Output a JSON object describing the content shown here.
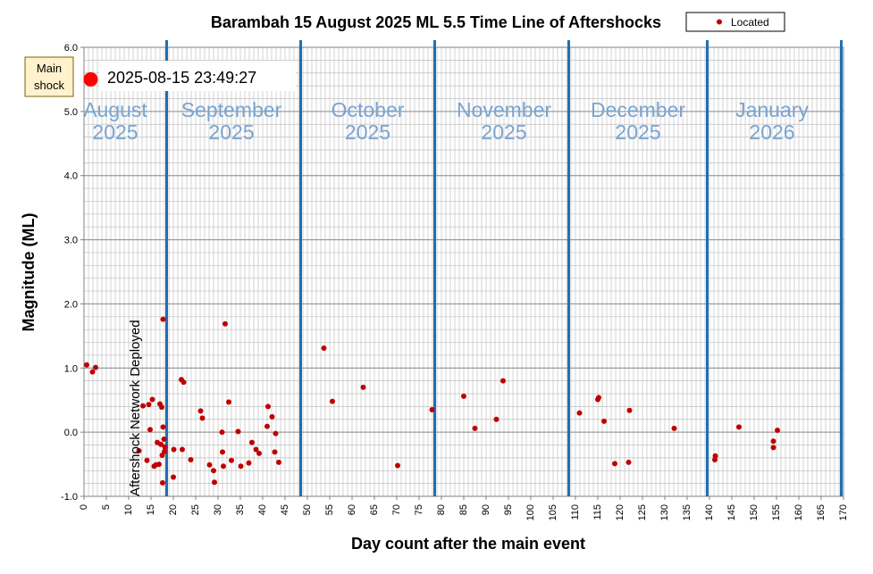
{
  "chart_data": {
    "type": "scatter",
    "title": "Barambah  15 August 2025 ML 5.5 Time Line of Aftershocks",
    "xlabel": "Day count after the main event",
    "ylabel": "Magnitude  (ML)",
    "xlim": [
      0,
      170
    ],
    "ylim": [
      -1.0,
      6.0
    ],
    "x_ticks": [
      0,
      5,
      10,
      15,
      20,
      25,
      30,
      35,
      40,
      45,
      50,
      55,
      60,
      65,
      70,
      75,
      80,
      85,
      90,
      95,
      100,
      105,
      110,
      115,
      120,
      125,
      130,
      135,
      140,
      145,
      150,
      155,
      160,
      165,
      170
    ],
    "y_ticks": [
      "-1.0",
      "0.0",
      "1.0",
      "2.0",
      "3.0",
      "4.0",
      "5.0",
      "6.0"
    ],
    "grid": true,
    "legend": {
      "position": "top-right",
      "entries": [
        "Located"
      ]
    },
    "colors": {
      "points": "#c00000",
      "month_lines": "#1f6fb4",
      "month_labels": "#7aa3d0",
      "grid": "#c0c0c0",
      "mainshock": "#ff0000",
      "callout_bg": "#fff2cc"
    },
    "month_boundaries": [
      18.5,
      48.5,
      78.5,
      108.5,
      139.5,
      169.5
    ],
    "month_labels": [
      {
        "name": "August",
        "year": "2025",
        "x": 7
      },
      {
        "name": "September",
        "year": "2025",
        "x": 33
      },
      {
        "name": "October",
        "year": "2025",
        "x": 63.5
      },
      {
        "name": "November",
        "year": "2025",
        "x": 94
      },
      {
        "name": "December",
        "year": "2025",
        "x": 124
      },
      {
        "name": "January",
        "year": "2026",
        "x": 154
      }
    ],
    "annotations": {
      "mainshock_label": "Main shock",
      "mainshock_time": "2025-08-15 23:49:27",
      "network_note": "Aftershock Network Deployed"
    },
    "mainshock": {
      "x": 1.5,
      "y": 5.5
    },
    "series": [
      {
        "name": "Located",
        "points": [
          [
            0.6,
            1.05
          ],
          [
            1.9,
            0.94
          ],
          [
            2.6,
            1.01
          ],
          [
            12.3,
            -0.29
          ],
          [
            13.2,
            0.41
          ],
          [
            14.1,
            -0.44
          ],
          [
            14.5,
            0.43
          ],
          [
            14.8,
            0.04
          ],
          [
            15.3,
            0.51
          ],
          [
            15.7,
            -0.53
          ],
          [
            16.1,
            -0.51
          ],
          [
            16.4,
            -0.16
          ],
          [
            16.8,
            -0.5
          ],
          [
            17.0,
            0.44
          ],
          [
            17.2,
            -0.19
          ],
          [
            17.4,
            0.39
          ],
          [
            17.5,
            -0.36
          ],
          [
            17.7,
            0.08
          ],
          [
            17.9,
            -0.11
          ],
          [
            18.0,
            -0.3
          ],
          [
            17.6,
            -0.79
          ],
          [
            17.7,
            1.76
          ],
          [
            18.1,
            -0.23
          ],
          [
            20.1,
            -0.27
          ],
          [
            20.0,
            -0.7
          ],
          [
            21.8,
            0.82
          ],
          [
            22.3,
            0.78
          ],
          [
            22.0,
            -0.27
          ],
          [
            23.9,
            -0.43
          ],
          [
            26.1,
            0.33
          ],
          [
            26.5,
            0.22
          ],
          [
            28.1,
            -0.51
          ],
          [
            29.0,
            -0.6
          ],
          [
            29.2,
            -0.78
          ],
          [
            30.9,
            0.0
          ],
          [
            31.0,
            -0.31
          ],
          [
            31.2,
            -0.53
          ],
          [
            31.6,
            1.69
          ],
          [
            32.4,
            0.47
          ],
          [
            33.0,
            -0.44
          ],
          [
            34.5,
            0.01
          ],
          [
            35.1,
            -0.53
          ],
          [
            36.9,
            -0.48
          ],
          [
            37.6,
            -0.16
          ],
          [
            38.5,
            -0.27
          ],
          [
            39.2,
            -0.33
          ],
          [
            41.0,
            0.09
          ],
          [
            41.2,
            0.4
          ],
          [
            42.1,
            0.24
          ],
          [
            42.7,
            -0.31
          ],
          [
            42.9,
            -0.02
          ],
          [
            43.6,
            -0.47
          ],
          [
            53.7,
            1.31
          ],
          [
            55.6,
            0.48
          ],
          [
            62.5,
            0.7
          ],
          [
            70.2,
            -0.52
          ],
          [
            77.9,
            0.35
          ],
          [
            85.0,
            0.56
          ],
          [
            87.5,
            0.06
          ],
          [
            92.3,
            0.2
          ],
          [
            93.8,
            0.8
          ],
          [
            110.9,
            0.3
          ],
          [
            115.0,
            0.51
          ],
          [
            115.2,
            0.54
          ],
          [
            116.4,
            0.17
          ],
          [
            118.8,
            -0.49
          ],
          [
            122.1,
            0.34
          ],
          [
            121.9,
            -0.47
          ],
          [
            132.1,
            0.06
          ],
          [
            141.3,
            -0.37
          ],
          [
            141.2,
            -0.43
          ],
          [
            146.6,
            0.08
          ],
          [
            154.3,
            -0.14
          ],
          [
            154.3,
            -0.24
          ],
          [
            155.2,
            0.03
          ]
        ]
      }
    ]
  }
}
